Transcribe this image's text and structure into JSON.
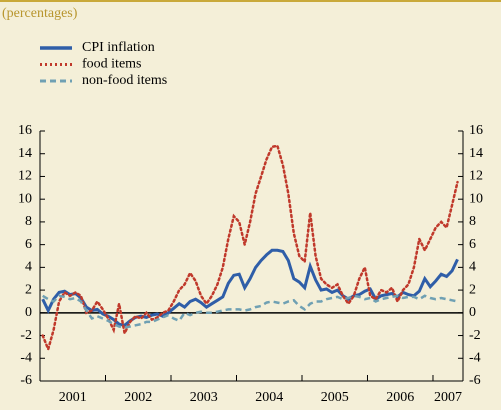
{
  "chart_data": {
    "type": "line",
    "subtitle": "(percentages)",
    "categories": [
      null,
      null,
      null,
      null,
      null,
      null,
      null,
      null,
      null,
      null,
      null,
      null,
      null,
      null,
      null,
      null,
      null,
      null,
      null,
      null,
      null,
      null,
      null,
      null,
      null,
      null,
      null,
      null,
      null,
      null,
      null,
      null,
      null,
      null,
      null,
      null,
      null,
      null,
      null,
      null,
      null,
      null,
      null,
      null,
      null,
      null,
      null,
      null,
      null,
      null,
      null,
      null,
      null,
      null,
      null,
      null,
      null,
      null,
      null,
      null,
      null,
      null,
      null,
      null,
      null,
      null,
      null,
      null,
      null,
      null,
      null,
      null,
      null,
      null,
      null,
      null,
      null
    ],
    "years": [
      "2001",
      "2002",
      "2003",
      "2004",
      "2005",
      "2006",
      "2007"
    ],
    "series": [
      {
        "name": "CPI inflation",
        "color": "#2f5ea8",
        "style": "solid",
        "values": [
          1.2,
          0.2,
          1.2,
          1.8,
          1.9,
          1.6,
          1.7,
          1.3,
          0.5,
          0.2,
          0.3,
          -0.1,
          -0.3,
          -0.6,
          -1.0,
          -1.1,
          -0.7,
          -0.4,
          -0.3,
          -0.4,
          -0.2,
          -0.1,
          -0.3,
          0.0,
          0.4,
          0.8,
          0.5,
          1.0,
          1.2,
          0.9,
          0.5,
          0.8,
          1.1,
          1.4,
          2.6,
          3.3,
          3.4,
          2.2,
          3.0,
          4.0,
          4.6,
          5.1,
          5.5,
          5.5,
          5.4,
          4.6,
          3.0,
          2.7,
          2.2,
          4.1,
          2.9,
          2.0,
          2.1,
          1.8,
          2.0,
          1.5,
          1.2,
          1.5,
          1.6,
          1.9,
          2.1,
          1.2,
          1.5,
          1.6,
          1.7,
          1.4,
          1.8,
          1.6,
          1.5,
          1.9,
          3.0,
          2.3,
          2.8,
          3.4,
          3.2,
          3.7,
          4.7
        ]
      },
      {
        "name": "food items",
        "color": "#c0392b",
        "style": "dotted",
        "values": [
          -2.0,
          -3.2,
          -1.5,
          1.0,
          1.8,
          1.5,
          1.8,
          1.5,
          0.0,
          0.2,
          1.0,
          0.3,
          -0.5,
          -1.5,
          0.8,
          -1.8,
          -0.8,
          -0.3,
          -0.5,
          0.0,
          -0.6,
          -0.4,
          0.0,
          0.2,
          1.0,
          2.0,
          2.5,
          3.5,
          2.8,
          1.5,
          0.8,
          1.5,
          2.5,
          4.0,
          6.5,
          8.5,
          8.0,
          6.0,
          8.0,
          10.5,
          12.0,
          13.5,
          14.6,
          14.7,
          13.0,
          10.5,
          7.0,
          5.0,
          4.5,
          8.8,
          5.0,
          3.0,
          2.5,
          2.2,
          2.5,
          1.5,
          0.8,
          1.5,
          3.0,
          4.0,
          1.5,
          1.2,
          2.0,
          1.8,
          2.2,
          1.0,
          2.0,
          2.5,
          4.0,
          6.5,
          5.5,
          6.5,
          7.5,
          8.0,
          7.5,
          9.5,
          11.5
        ]
      },
      {
        "name": "non-food items",
        "color": "#6fa0b3",
        "style": "dashed",
        "values": [
          1.5,
          1.2,
          1.0,
          1.5,
          1.4,
          1.2,
          1.3,
          1.0,
          0.2,
          -0.5,
          -0.3,
          -0.5,
          -0.7,
          -1.0,
          -1.2,
          -1.3,
          -1.2,
          -1.1,
          -1.0,
          -0.8,
          -0.8,
          -0.6,
          -0.4,
          -0.2,
          -0.5,
          -0.7,
          0.0,
          -0.2,
          0.0,
          0.1,
          0.0,
          0.0,
          0.1,
          0.2,
          0.3,
          0.3,
          0.3,
          0.2,
          0.3,
          0.5,
          0.6,
          0.9,
          1.0,
          0.9,
          0.8,
          1.0,
          1.1,
          0.6,
          0.3,
          0.8,
          1.0,
          1.0,
          1.2,
          1.3,
          1.4,
          1.2,
          1.3,
          1.5,
          1.4,
          1.2,
          1.3,
          1.0,
          1.2,
          1.3,
          1.4,
          1.5,
          1.3,
          1.4,
          1.4,
          1.2,
          1.5,
          1.3,
          1.2,
          1.3,
          1.2,
          1.1,
          1.0
        ]
      }
    ],
    "ylim": [
      -6,
      16
    ],
    "yticks": [
      -6,
      -4,
      -2,
      0,
      2,
      4,
      6,
      8,
      10,
      12,
      14,
      16
    ],
    "grid": false,
    "legend": "top-left"
  }
}
